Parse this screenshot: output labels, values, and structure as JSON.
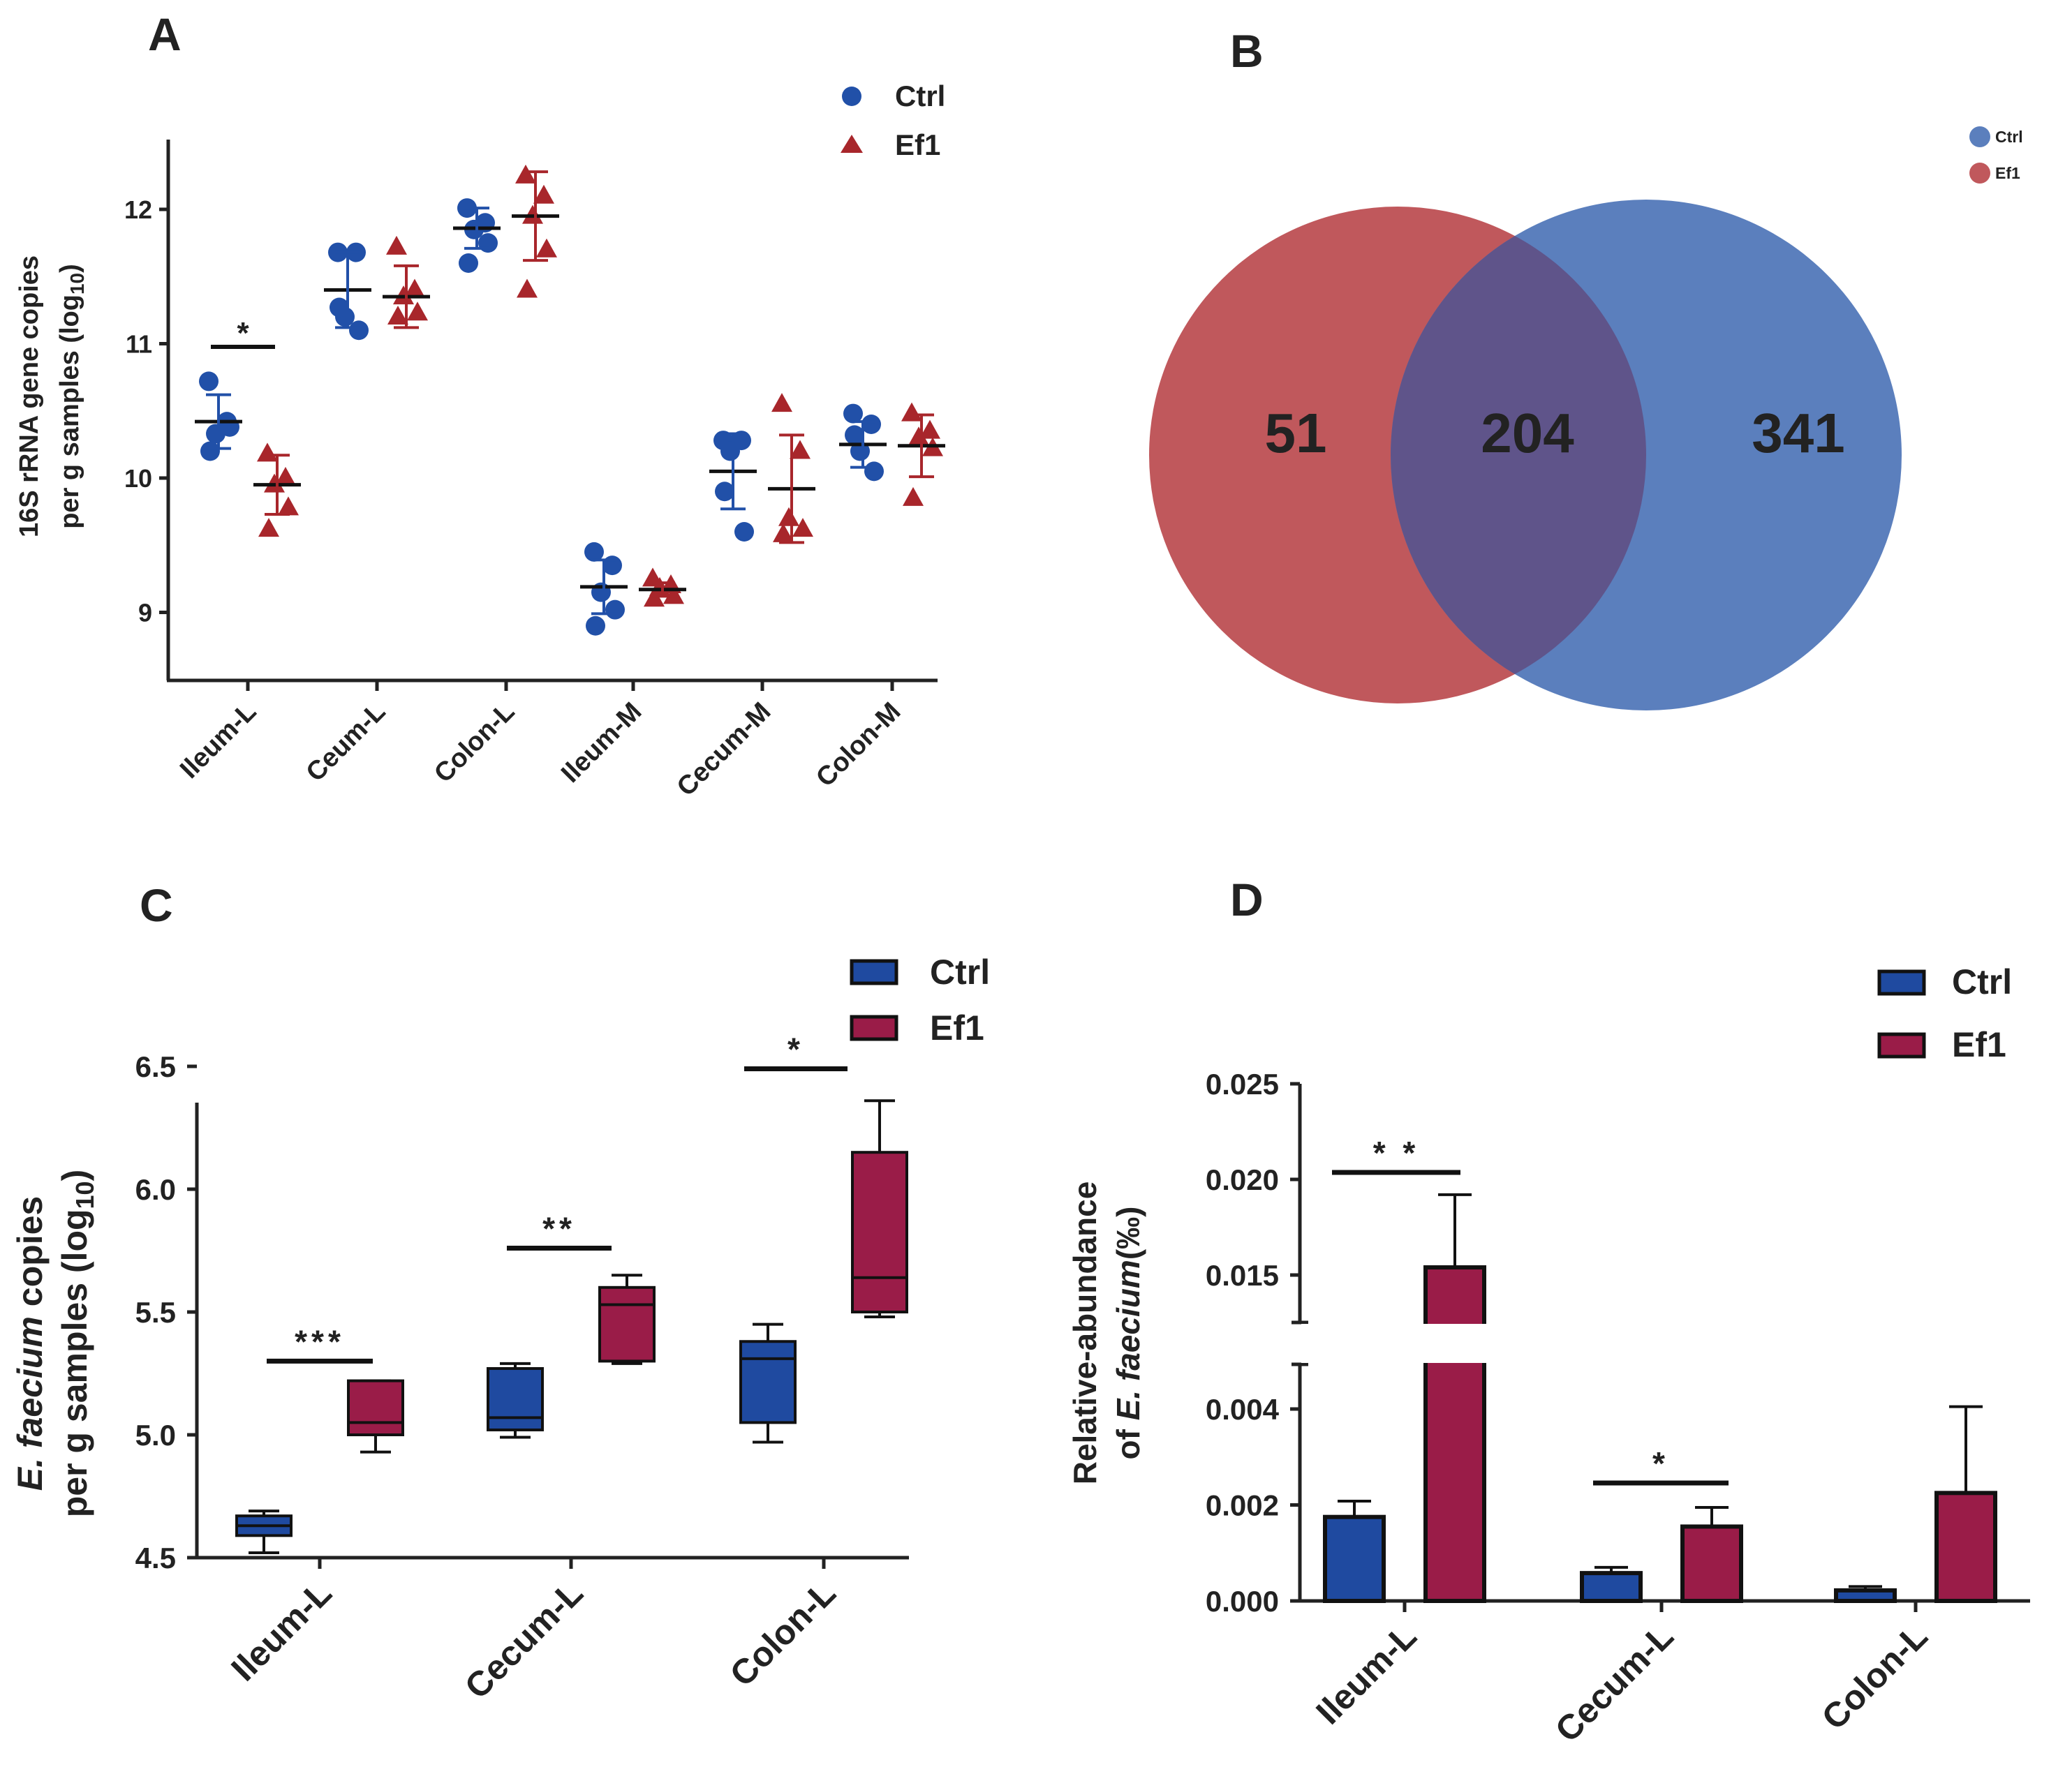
{
  "colors": {
    "ctrl": "#2150a8",
    "ef1": "#a8262b",
    "ctrl_box": "#1f4aa0",
    "ef1_box": "#9a1c48",
    "venn_ctrl": "#5b7fbd",
    "venn_ef1": "#c0585c",
    "venn_overlap": "#5f548a"
  },
  "panels": {
    "A": {
      "label": "A",
      "chart_data": {
        "type": "scatter",
        "ylabel_line1": "16S rRNA gene copies",
        "ylabel_line2_prefix": "per g samples (log",
        "ylabel_line2_sub": "10",
        "ylabel_line2_suffix": ")",
        "ylim": [
          8.5,
          12.5
        ],
        "yticks": [
          9,
          10,
          11,
          12
        ],
        "categories": [
          "Ileum-L",
          "Ceum-L",
          "Colon-L",
          "Ileum-M",
          "Cecum-M",
          "Colon-M"
        ],
        "legend": [
          {
            "name": "Ctrl",
            "marker": "circle"
          },
          {
            "name": "Ef1",
            "marker": "triangle"
          }
        ],
        "series": [
          {
            "name": "Ctrl",
            "points": [
              [
                10.72,
                10.42,
                10.33,
                10.38,
                10.2
              ],
              [
                11.68,
                11.68,
                11.2,
                11.1,
                11.27
              ],
              [
                12.01,
                11.9,
                11.85,
                11.75,
                11.6
              ],
              [
                9.45,
                9.35,
                9.15,
                9.02,
                8.9
              ],
              [
                10.28,
                10.28,
                10.2,
                9.6,
                9.9
              ],
              [
                10.48,
                10.4,
                10.2,
                10.05,
                10.32
              ]
            ],
            "mean": [
              10.42,
              11.4,
              11.86,
              9.19,
              10.05,
              10.25
            ],
            "sd": [
              0.2,
              0.28,
              0.15,
              0.2,
              0.28,
              0.17
            ]
          },
          {
            "name": "Ef1",
            "points": [
              [
                10.18,
                10.0,
                9.95,
                9.78,
                9.62
              ],
              [
                11.72,
                11.4,
                11.35,
                11.23,
                11.2
              ],
              [
                12.25,
                12.1,
                11.95,
                11.7,
                11.4
              ],
              [
                9.25,
                9.2,
                9.18,
                9.12,
                9.1
              ],
              [
                10.55,
                10.2,
                9.7,
                9.62,
                9.58
              ],
              [
                10.48,
                10.35,
                10.3,
                10.22,
                9.85
              ]
            ],
            "mean": [
              9.95,
              11.35,
              11.95,
              9.17,
              9.92,
              10.24
            ],
            "sd": [
              0.22,
              0.23,
              0.33,
              0.05,
              0.4,
              0.23
            ]
          }
        ],
        "annotations": [
          {
            "category": "Ileum-L",
            "text": "*"
          }
        ]
      }
    },
    "B": {
      "label": "B",
      "chart_data": {
        "type": "venn",
        "sets": [
          {
            "name": "Ef1",
            "only": "51"
          },
          {
            "name": "Ctrl",
            "only": "341"
          }
        ],
        "overlap": "204",
        "legend": [
          {
            "name": "Ctrl"
          },
          {
            "name": "Ef1"
          }
        ]
      }
    },
    "C": {
      "label": "C",
      "chart_data": {
        "type": "box",
        "ylabel_line1_italic": "E. faecium",
        "ylabel_line1_rest": " copies",
        "ylabel_line2_prefix": "per g samples (log",
        "ylabel_line2_sub": "10",
        "ylabel_line2_suffix": ")",
        "ylim": [
          4.5,
          6.5
        ],
        "yticks": [
          "4.5",
          "5.0",
          "5.5",
          "6.0",
          "6.5"
        ],
        "ytick_values": [
          4.5,
          5.0,
          5.5,
          6.0,
          6.5
        ],
        "categories": [
          "Ileum-L",
          "Cecum-L",
          "Colon-L"
        ],
        "legend": [
          {
            "name": "Ctrl"
          },
          {
            "name": "Ef1"
          }
        ],
        "series": [
          {
            "name": "Ctrl",
            "boxes": [
              {
                "min": 4.52,
                "q1": 4.59,
                "median": 4.63,
                "q3": 4.67,
                "max": 4.69
              },
              {
                "min": 4.99,
                "q1": 5.02,
                "median": 5.07,
                "q3": 5.27,
                "max": 5.29
              },
              {
                "min": 4.97,
                "q1": 5.05,
                "median": 5.31,
                "q3": 5.38,
                "max": 5.45
              }
            ]
          },
          {
            "name": "Ef1",
            "boxes": [
              {
                "min": 4.93,
                "q1": 5.0,
                "median": 5.05,
                "q3": 5.22,
                "max": 5.22
              },
              {
                "min": 5.29,
                "q1": 5.3,
                "median": 5.53,
                "q3": 5.6,
                "max": 5.65
              },
              {
                "min": 5.48,
                "q1": 5.5,
                "median": 5.64,
                "q3": 6.15,
                "max": 6.36
              }
            ]
          }
        ],
        "annotations": [
          {
            "category": "Ileum-L",
            "text": "***",
            "y": 5.3
          },
          {
            "category": "Cecum-L",
            "text": "**",
            "y": 5.76
          },
          {
            "category": "Colon-L",
            "text": "*",
            "y": 6.49
          }
        ]
      }
    },
    "D": {
      "label": "D",
      "chart_data": {
        "type": "bar",
        "ylabel_line1": "Relative-abundance",
        "ylabel_line2_prefix": "of ",
        "ylabel_line2_italic": "E. faecium",
        "ylabel_line2_suffix": "(‰)",
        "axis_break": {
          "lower": [
            0,
            0.0047
          ],
          "upper": [
            0.0127,
            0.025
          ]
        },
        "yticks_lower": [
          "0.000",
          "0.002",
          "0.004"
        ],
        "yticks_lower_values": [
          0,
          0.002,
          0.004
        ],
        "yticks_upper": [
          "0.015",
          "0.020",
          "0.025"
        ],
        "yticks_upper_values": [
          0.015,
          0.02,
          0.025
        ],
        "categories": [
          "Ileum-L",
          "Cecum-L",
          "Colon-L"
        ],
        "legend": [
          {
            "name": "Ctrl"
          },
          {
            "name": "Ef1"
          }
        ],
        "series": [
          {
            "name": "Ctrl",
            "values": [
              0.00175,
              0.00058,
              0.00022
            ],
            "errors": [
              0.00033,
              0.00012,
              8e-05
            ]
          },
          {
            "name": "Ef1",
            "values": [
              0.0154,
              0.00155,
              0.00225
            ],
            "errors": [
              0.0038,
              0.0004,
              0.0018
            ]
          }
        ],
        "annotations": [
          {
            "category": "Ileum-L",
            "text": "* *"
          },
          {
            "category": "Cecum-L",
            "text": "*"
          }
        ]
      }
    }
  }
}
